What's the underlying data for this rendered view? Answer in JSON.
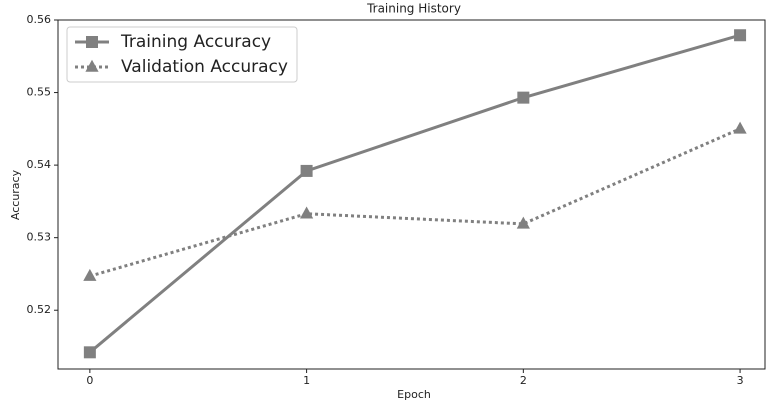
{
  "chart_data": {
    "type": "line",
    "title": "Training History",
    "xlabel": "Epoch",
    "ylabel": "Accuracy",
    "x": [
      0,
      1,
      2,
      3
    ],
    "series": [
      {
        "name": "Training Accuracy",
        "color": "#808080",
        "marker": "square",
        "linestyle": "solid",
        "values": [
          0.5142,
          0.5392,
          0.5493,
          0.5579
        ]
      },
      {
        "name": "Validation Accuracy",
        "color": "#808080",
        "marker": "triangle",
        "linestyle": "dotted",
        "values": [
          0.5247,
          0.5333,
          0.5319,
          0.545
        ]
      }
    ],
    "xlim": [
      -0.147,
      3.115
    ],
    "xticks": [
      0,
      1,
      2,
      3
    ],
    "ylim": [
      0.5119,
      0.56
    ],
    "yticks": [
      0.52,
      0.53,
      0.54,
      0.55,
      0.56
    ],
    "legend": "upper left",
    "grid": false
  }
}
